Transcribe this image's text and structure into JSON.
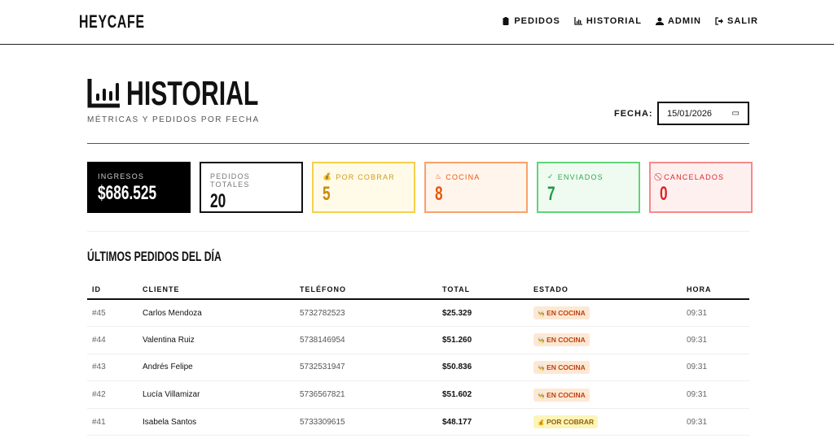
{
  "brand": "HEYCAFE",
  "nav": [
    {
      "label": "PEDIDOS",
      "icon": "clipboard-icon"
    },
    {
      "label": "HISTORIAL",
      "icon": "chart-icon"
    },
    {
      "label": "ADMIN",
      "icon": "user-icon"
    },
    {
      "label": "SALIR",
      "icon": "logout-icon"
    }
  ],
  "page": {
    "title": "HISTORIAL",
    "subtitle": "MÉTRICAS Y PEDIDOS POR FECHA",
    "date_label": "FECHA:",
    "date_value": "15/01/2026"
  },
  "cards": [
    {
      "label": "INGRESOS",
      "value": "$686.525",
      "icon": "",
      "bg": "#000000",
      "border": "#000000",
      "color": "#ffffff",
      "labcolor": "#cccccc"
    },
    {
      "label": "PEDIDOS TOTALES",
      "value": "20",
      "icon": "",
      "bg": "#ffffff",
      "border": "#111111",
      "color": "#111111",
      "labcolor": "#777777"
    },
    {
      "label": "POR COBRAR",
      "value": "5",
      "icon": "💰",
      "bg": "#fffbe8",
      "border": "#f5d04a",
      "color": "#c98a0a",
      "labcolor": "#d39a1c"
    },
    {
      "label": "COCINA",
      "value": "8",
      "icon": "♨",
      "bg": "#fff5ec",
      "border": "#f8a26a",
      "color": "#e8590c",
      "labcolor": "#e8590c"
    },
    {
      "label": "ENVIADOS",
      "value": "7",
      "icon": "✓",
      "bg": "#effbf1",
      "border": "#5fd37a",
      "color": "#1e9a40",
      "labcolor": "#2fa64d"
    },
    {
      "label": "CANCELADOS",
      "value": "0",
      "icon": "⃠",
      "bg": "#fff0f0",
      "border": "#f58a8a",
      "color": "#dc2626",
      "labcolor": "#dc2626"
    }
  ],
  "section_title": "ÚLTIMOS PEDIDOS DEL DÍA",
  "table": {
    "headers": [
      "ID",
      "CLIENTE",
      "TELÉFONO",
      "TOTAL",
      "ESTADO",
      "HORA"
    ],
    "rows": [
      {
        "id": "#45",
        "cliente": "Carlos Mendoza",
        "telefono": "5732782523",
        "total": "$25.329",
        "estado": "EN COCINA",
        "hora": "09:31"
      },
      {
        "id": "#44",
        "cliente": "Valentina Ruiz",
        "telefono": "5738146954",
        "total": "$51.260",
        "estado": "EN COCINA",
        "hora": "09:31"
      },
      {
        "id": "#43",
        "cliente": "Andrés Felipe",
        "telefono": "5732531947",
        "total": "$50.836",
        "estado": "EN COCINA",
        "hora": "09:31"
      },
      {
        "id": "#42",
        "cliente": "Lucía Villamizar",
        "telefono": "5736567821",
        "total": "$51.602",
        "estado": "EN COCINA",
        "hora": "09:31"
      },
      {
        "id": "#41",
        "cliente": "Isabela Santos",
        "telefono": "5733309615",
        "total": "$48.177",
        "estado": "POR COBRAR",
        "hora": "09:31"
      }
    ]
  },
  "status_colors": {
    "EN COCINA": {
      "bg": "#fde8d4",
      "color": "#c2410c",
      "icon": "👨‍🍳"
    },
    "POR COBRAR": {
      "bg": "#fdf5b8",
      "color": "#92610a",
      "icon": "💰"
    }
  }
}
